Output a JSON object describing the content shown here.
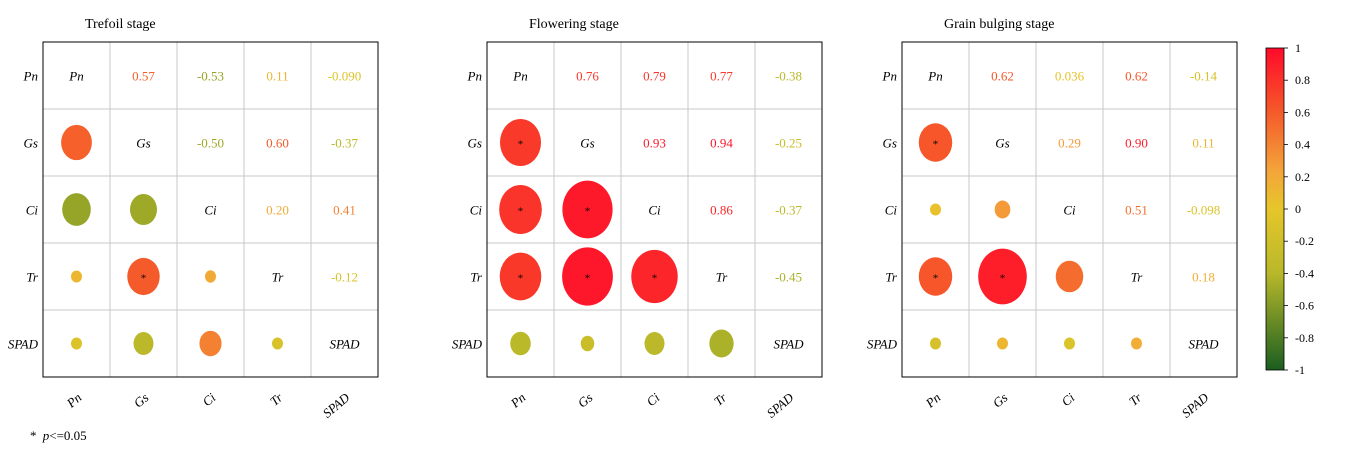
{
  "chart_data": [
    {
      "type": "heatmap",
      "title": "Trefoil stage",
      "variables": [
        "Pn",
        "Gs",
        "Ci",
        "Tr",
        "SPAD"
      ],
      "matrix": [
        [
          1,
          0.57,
          -0.53,
          0.11,
          -0.09
        ],
        [
          0.57,
          1,
          -0.5,
          0.6,
          -0.37
        ],
        [
          -0.53,
          -0.5,
          1,
          0.2,
          0.41
        ],
        [
          0.11,
          0.6,
          0.2,
          1,
          -0.12
        ],
        [
          -0.09,
          -0.37,
          0.41,
          -0.12,
          1
        ]
      ],
      "upper_labels": [
        [
          "",
          "0.57",
          "-0.53",
          "0.11",
          "-0.090"
        ],
        [
          "",
          "",
          "-0.50",
          "0.60",
          "-0.37"
        ],
        [
          "",
          "",
          "",
          "0.20",
          "0.41"
        ],
        [
          "",
          "",
          "",
          "",
          "-0.12"
        ]
      ],
      "significant": [
        [
          3,
          1
        ]
      ]
    },
    {
      "type": "heatmap",
      "title": "Flowering stage",
      "variables": [
        "Pn",
        "Gs",
        "Ci",
        "Tr",
        "SPAD"
      ],
      "matrix": [
        [
          1,
          0.76,
          0.79,
          0.77,
          -0.38
        ],
        [
          0.76,
          1,
          0.93,
          0.94,
          -0.25
        ],
        [
          0.79,
          0.93,
          1,
          0.86,
          -0.37
        ],
        [
          0.77,
          0.94,
          0.86,
          1,
          -0.45
        ],
        [
          -0.38,
          -0.25,
          -0.37,
          -0.45,
          1
        ]
      ],
      "upper_labels": [
        [
          "",
          "0.76",
          "0.79",
          "0.77",
          "-0.38"
        ],
        [
          "",
          "",
          "0.93",
          "0.94",
          "-0.25"
        ],
        [
          "",
          "",
          "",
          "0.86",
          "-0.37"
        ],
        [
          "",
          "",
          "",
          "",
          "-0.45"
        ]
      ],
      "significant": [
        [
          1,
          0
        ],
        [
          2,
          0
        ],
        [
          2,
          1
        ],
        [
          3,
          0
        ],
        [
          3,
          1
        ],
        [
          3,
          2
        ]
      ]
    },
    {
      "type": "heatmap",
      "title": "Grain bulging stage",
      "variables": [
        "Pn",
        "Gs",
        "Ci",
        "Tr",
        "SPAD"
      ],
      "matrix": [
        [
          1,
          0.62,
          0.036,
          0.62,
          -0.14
        ],
        [
          0.62,
          1,
          0.29,
          0.9,
          0.11
        ],
        [
          0.036,
          0.29,
          1,
          0.51,
          -0.098
        ],
        [
          0.62,
          0.9,
          0.51,
          1,
          0.18
        ],
        [
          -0.14,
          0.11,
          -0.098,
          0.18,
          1
        ]
      ],
      "upper_labels": [
        [
          "",
          "0.62",
          "0.036",
          "0.62",
          "-0.14"
        ],
        [
          "",
          "",
          "0.29",
          "0.90",
          "0.11"
        ],
        [
          "",
          "",
          "",
          "0.51",
          "-0.098"
        ],
        [
          "",
          "",
          "",
          "",
          "0.18"
        ]
      ],
      "significant": [
        [
          1,
          0
        ],
        [
          3,
          0
        ],
        [
          3,
          1
        ]
      ]
    }
  ],
  "significance_mark": "*",
  "note": {
    "symbol": "*",
    "var": "p",
    "cond": "<=0.05"
  },
  "colorbar": {
    "range": [
      -1,
      1
    ],
    "ticks": [
      "1",
      "0.8",
      "0.6",
      "0.4",
      "0.2",
      "0",
      "-0.2",
      "-0.4",
      "-0.6",
      "-0.8",
      "-1"
    ],
    "stops": [
      "#1a5e20",
      "#b8b82a",
      "#e6c62a",
      "#f4a43a",
      "#f55a2a",
      "#ff0a2a"
    ]
  }
}
